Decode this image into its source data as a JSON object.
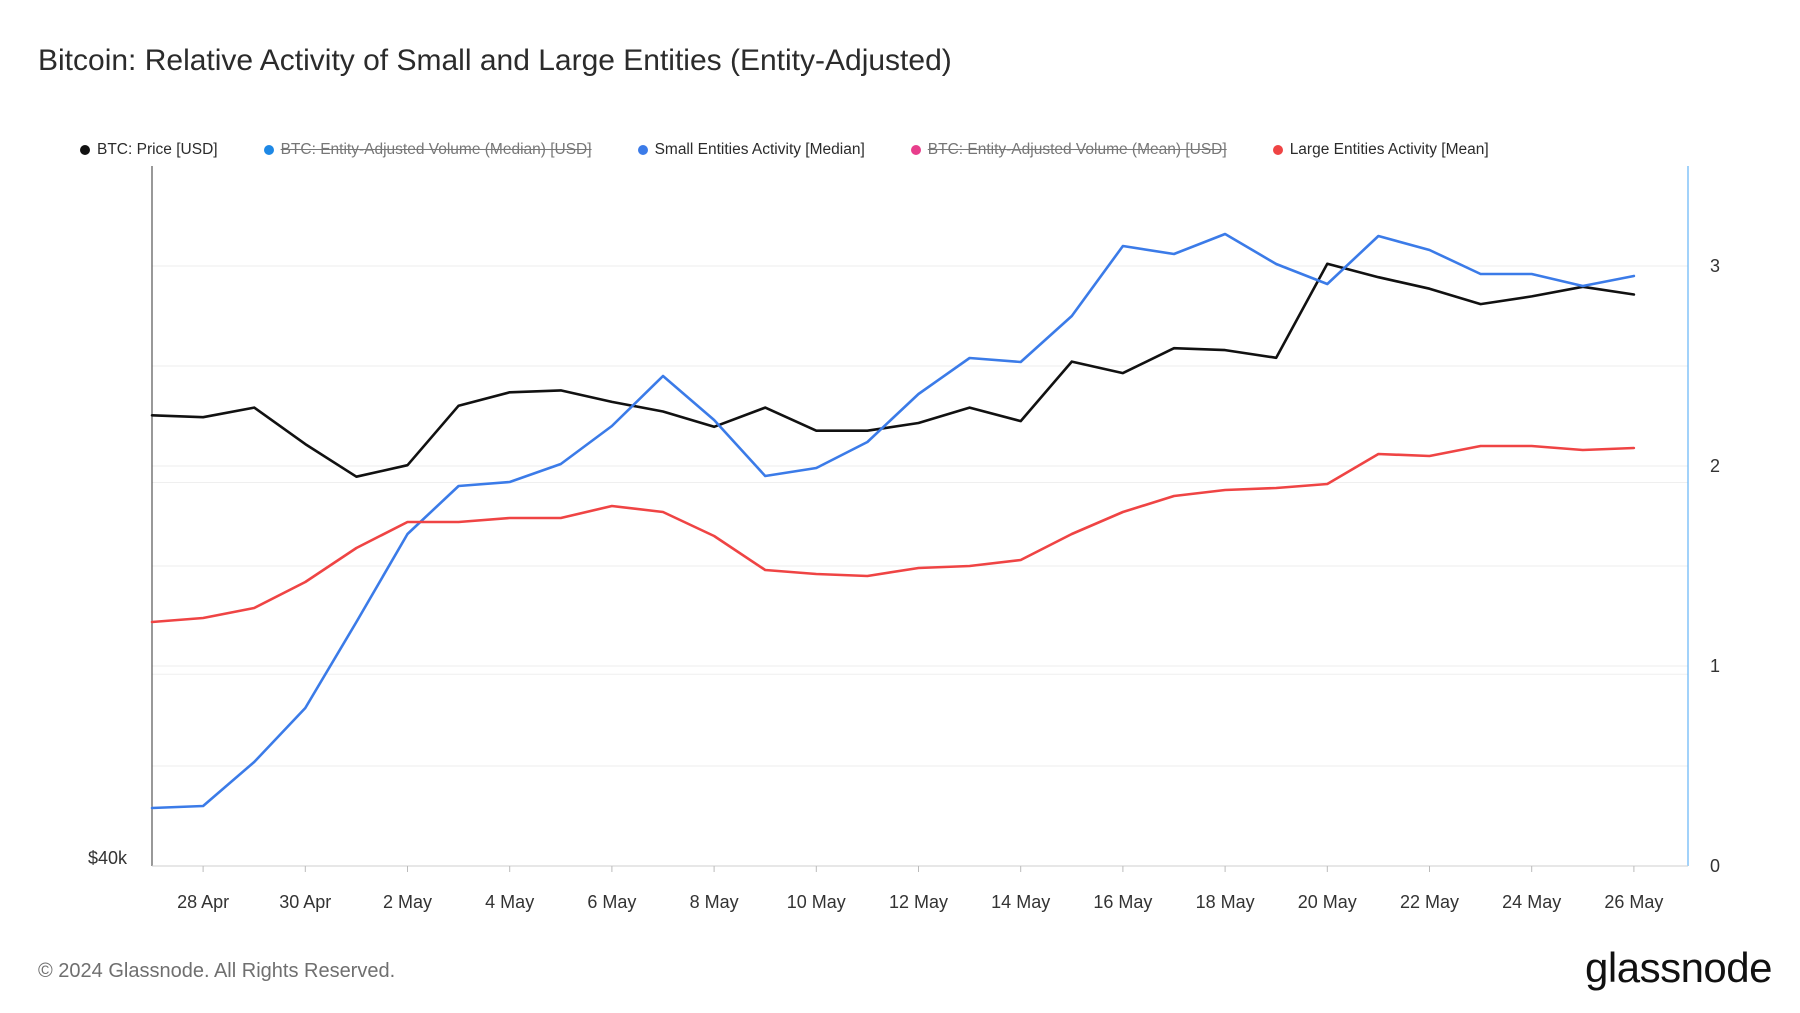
{
  "title": "Bitcoin: Relative Activity of Small and Large Entities (Entity-Adjusted)",
  "legend": [
    {
      "label": "BTC: Price [USD]",
      "color": "#111111",
      "hidden": false
    },
    {
      "label": "BTC: Entity-Adjusted Volume (Median) [USD]",
      "color": "#1e88e5",
      "hidden": true
    },
    {
      "label": "Small Entities Activity [Median]",
      "color": "#3b7be8",
      "hidden": false
    },
    {
      "label": "BTC: Entity-Adjusted Volume (Mean) [USD]",
      "color": "#e83e8c",
      "hidden": true
    },
    {
      "label": "Large Entities Activity [Mean]",
      "color": "#ef4444",
      "hidden": false
    }
  ],
  "footer": "© 2024 Glassnode. All Rights Reserved.",
  "logo": "glassnode",
  "chart_data": {
    "type": "line",
    "x": [
      "27 Apr",
      "28 Apr",
      "29 Apr",
      "30 Apr",
      "1 May",
      "2 May",
      "3 May",
      "4 May",
      "5 May",
      "6 May",
      "7 May",
      "8 May",
      "9 May",
      "10 May",
      "11 May",
      "12 May",
      "13 May",
      "14 May",
      "15 May",
      "16 May",
      "17 May",
      "18 May",
      "19 May",
      "20 May",
      "21 May",
      "22 May",
      "23 May",
      "24 May",
      "25 May",
      "26 May"
    ],
    "x_tick_labels": [
      "28 Apr",
      "30 Apr",
      "2 May",
      "4 May",
      "6 May",
      "8 May",
      "10 May",
      "12 May",
      "14 May",
      "16 May",
      "18 May",
      "20 May",
      "22 May",
      "24 May",
      "26 May"
    ],
    "left_axis": {
      "tick_labels": [
        "$40k"
      ],
      "min": 40000
    },
    "right_axis": {
      "ticks": [
        0,
        1,
        2,
        3
      ],
      "ylim": [
        0,
        3.5
      ]
    },
    "grid": true,
    "legend_position": "top-left",
    "series": [
      {
        "name": "BTC: Price [USD]",
        "axis": "left",
        "color": "#111111",
        "values": [
          63500,
          63400,
          63900,
          62000,
          60300,
          60900,
          64000,
          64700,
          64800,
          64200,
          63700,
          62900,
          63900,
          62700,
          62700,
          63100,
          63900,
          63200,
          66300,
          65700,
          67000,
          66900,
          66500,
          71400,
          70700,
          70100,
          69300,
          69700,
          70200,
          69800
        ]
      },
      {
        "name": "Small Entities Activity [Median]",
        "axis": "right",
        "color": "#3b7be8",
        "values": [
          0.29,
          0.3,
          0.52,
          0.79,
          1.22,
          1.66,
          1.9,
          1.92,
          2.01,
          2.2,
          2.45,
          2.23,
          1.95,
          1.99,
          2.12,
          2.36,
          2.54,
          2.52,
          2.75,
          3.1,
          3.06,
          3.16,
          3.01,
          2.91,
          3.15,
          3.08,
          2.96,
          2.96,
          2.9,
          2.95
        ]
      },
      {
        "name": "Large Entities Activity [Mean]",
        "axis": "right",
        "color": "#ef4444",
        "values": [
          1.22,
          1.24,
          1.29,
          1.42,
          1.59,
          1.72,
          1.72,
          1.74,
          1.74,
          1.8,
          1.77,
          1.65,
          1.48,
          1.46,
          1.45,
          1.49,
          1.5,
          1.53,
          1.66,
          1.77,
          1.85,
          1.88,
          1.89,
          1.91,
          2.06,
          2.05,
          2.1,
          2.1,
          2.08,
          2.09
        ]
      }
    ]
  }
}
